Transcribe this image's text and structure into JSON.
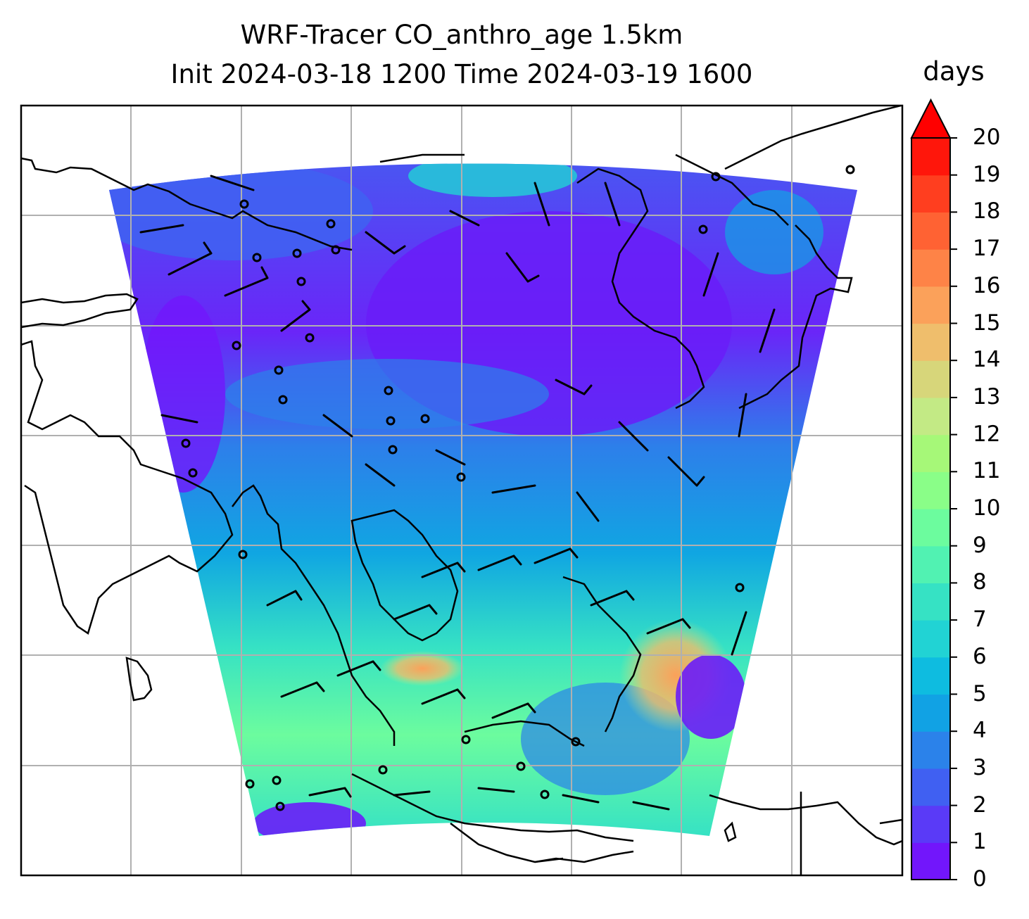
{
  "title": {
    "line1": "WRF-Tracer CO_anthro_age 1.5km",
    "line2": "Init 2024-03-18 1200 Time 2024-03-19 1600"
  },
  "colorbar": {
    "unit": "days",
    "min": 0,
    "max": 20,
    "extend": "max",
    "ticks": [
      "0",
      "1",
      "2",
      "3",
      "4",
      "5",
      "6",
      "7",
      "8",
      "9",
      "10",
      "11",
      "12",
      "13",
      "14",
      "15",
      "16",
      "17",
      "18",
      "19",
      "20"
    ],
    "colormap": "rainbow",
    "colors": [
      "#7216fb",
      "#5a3af7",
      "#4060f2",
      "#2b82ea",
      "#11a2e4",
      "#0ebce0",
      "#21d3d4",
      "#36e2c4",
      "#51f2b2",
      "#6cfc9e",
      "#8afe88",
      "#a6f878",
      "#c3ea85",
      "#d7d67a",
      "#efbe6c",
      "#fba15a",
      "#fe8347",
      "#ff6233",
      "#ff3e1f",
      "#ff160b",
      "#ff0000"
    ]
  },
  "map": {
    "variable": "CO_anthro_age",
    "level": "1.5km",
    "gridlines": true,
    "wind_barbs": true,
    "coastlines": true
  }
}
